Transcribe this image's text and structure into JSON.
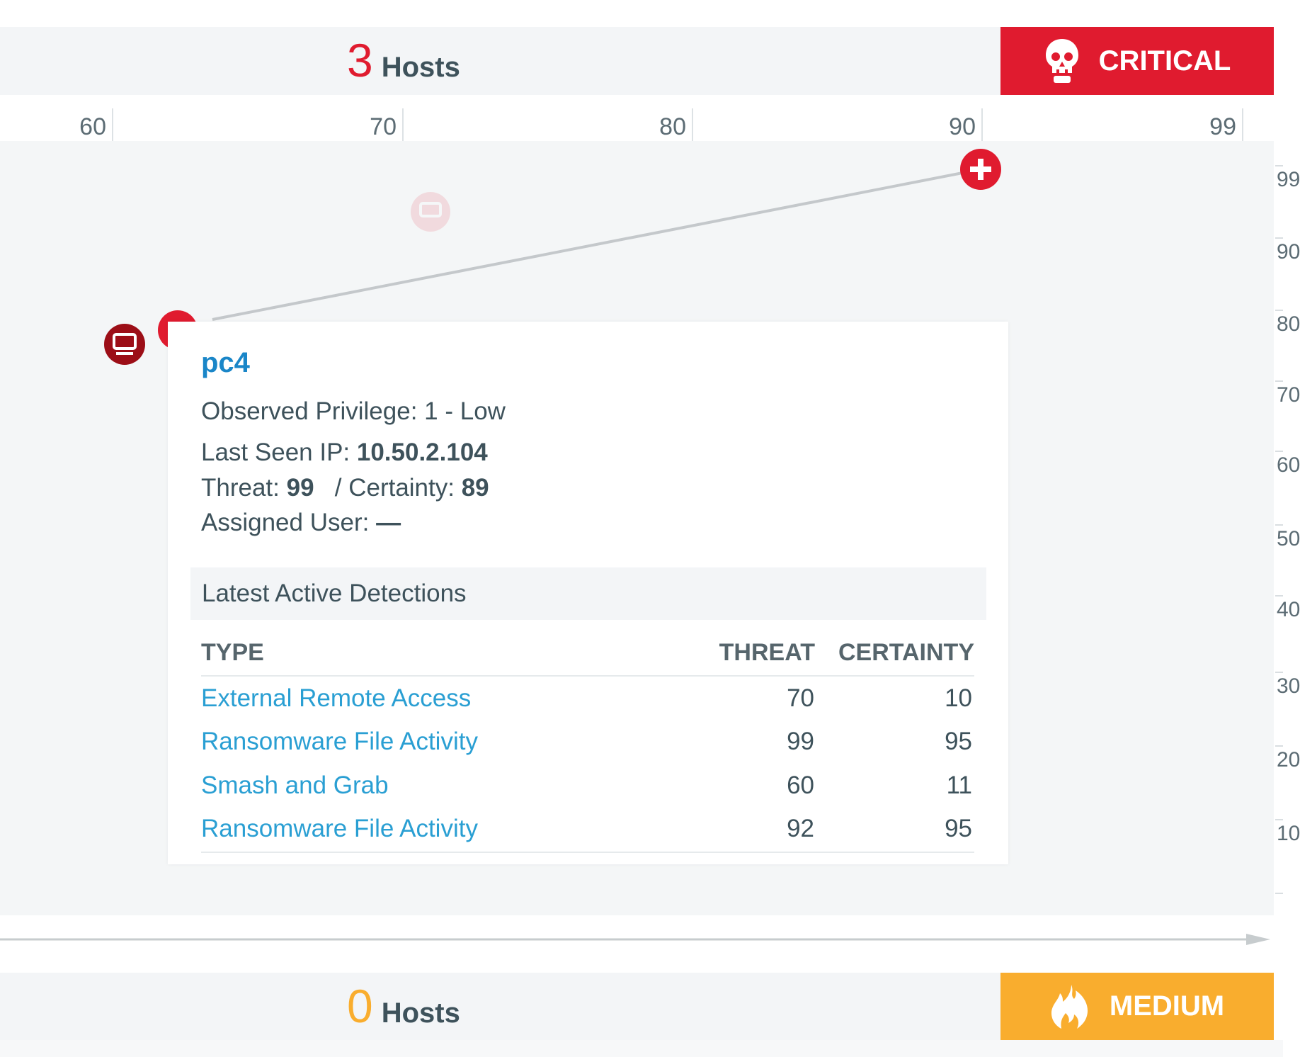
{
  "critical_band": {
    "count": "3",
    "hosts_label": "Hosts",
    "severity_label": "CRITICAL",
    "severity_icon": "skull-icon",
    "color": "#e01b2f"
  },
  "medium_band": {
    "count": "0",
    "hosts_label": "Hosts",
    "severity_label": "MEDIUM",
    "severity_icon": "flame-icon",
    "color": "#f9ad2e"
  },
  "x_axis": {
    "ticks": [
      "60",
      "70",
      "80",
      "90",
      "99"
    ]
  },
  "y_axis": {
    "ticks": [
      "99",
      "90",
      "80",
      "70",
      "60",
      "50",
      "40",
      "30",
      "20",
      "10"
    ]
  },
  "hosts": [
    {
      "threat": 90,
      "certainty": 97,
      "icon": "plus-icon",
      "style": "critical"
    },
    {
      "threat": 71,
      "certainty": 92,
      "icon": "monitor-icon",
      "style": "faded"
    },
    {
      "threat": 60,
      "certainty": 77,
      "icon": "monitor-icon",
      "style": "selected"
    }
  ],
  "tooltip": {
    "host_name": "pc4",
    "privilege_label": "Observed Privilege:",
    "privilege_value": "1 - Low",
    "ip_label": "Last Seen IP:",
    "ip_value": "10.50.2.104",
    "threat_label": "Threat:",
    "threat_value": "99",
    "certainty_label": "/ Certainty:",
    "certainty_value": "89",
    "user_label": "Assigned User:",
    "user_value": "—",
    "section_title": "Latest Active Detections",
    "columns": {
      "type": "TYPE",
      "threat": "THREAT",
      "certainty": "CERTAINTY"
    },
    "detections": [
      {
        "type": "External Remote Access",
        "threat": "70",
        "certainty": "10"
      },
      {
        "type": "Ransomware File Activity",
        "threat": "99",
        "certainty": "95"
      },
      {
        "type": "Smash and Grab",
        "threat": "60",
        "certainty": "11"
      },
      {
        "type": "Ransomware File Activity",
        "threat": "92",
        "certainty": "95"
      }
    ]
  }
}
